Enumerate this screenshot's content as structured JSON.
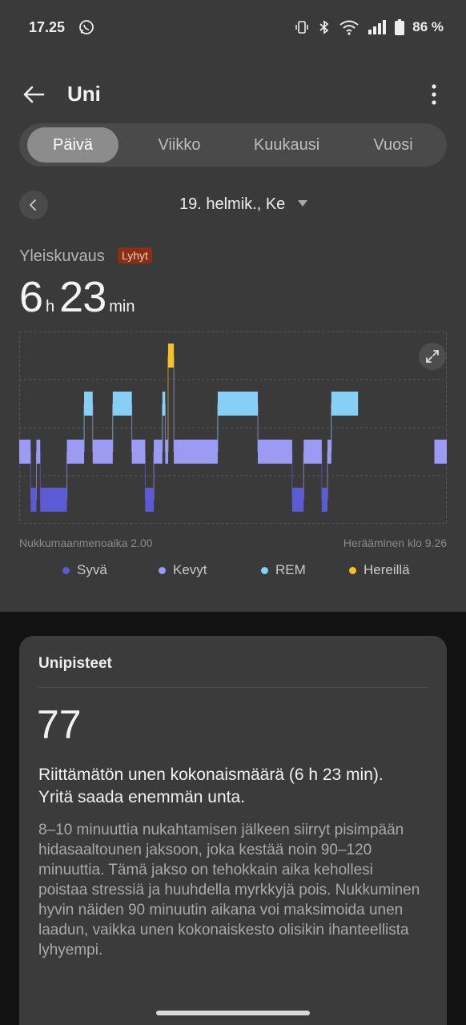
{
  "status": {
    "time": "17.25",
    "battery": "86 %"
  },
  "appbar": {
    "title": "Uni"
  },
  "tabs": [
    {
      "label": "Päivä",
      "active": true
    },
    {
      "label": "Viikko",
      "active": false
    },
    {
      "label": "Kuukausi",
      "active": false
    },
    {
      "label": "Vuosi",
      "active": false
    }
  ],
  "date": {
    "label": "19. helmik., Ke"
  },
  "overview": {
    "label": "Yleiskuvaus",
    "badge": "Lyhyt",
    "hours": "6",
    "hours_unit": "h",
    "minutes": "23",
    "minutes_unit": "min"
  },
  "chart": {
    "bedtime_label": "Nukkumaanmenoaika 2.00",
    "wake_label": "Herääminen klo 9.26",
    "colors": {
      "deep": "#5b5bd6",
      "light": "#9b9bf4",
      "rem": "#86d0f6",
      "awake": "#f6c026"
    },
    "stages": [
      "awake",
      "rem",
      "light",
      "deep"
    ]
  },
  "chart_data": {
    "type": "bar",
    "categories": [
      "Syvä",
      "Kevyt",
      "REM",
      "Hereillä"
    ],
    "start_time": "2.00",
    "end_time": "9.26",
    "segments": [
      {
        "stage": "light",
        "start": 0.0,
        "end": 0.12
      },
      {
        "stage": "deep",
        "start": 0.12,
        "end": 0.18
      },
      {
        "stage": "light",
        "start": 0.18,
        "end": 0.22
      },
      {
        "stage": "deep",
        "start": 0.22,
        "end": 0.5
      },
      {
        "stage": "light",
        "start": 0.5,
        "end": 0.68
      },
      {
        "stage": "rem",
        "start": 0.68,
        "end": 0.77
      },
      {
        "stage": "light",
        "start": 0.77,
        "end": 0.98
      },
      {
        "stage": "rem",
        "start": 0.98,
        "end": 1.18
      },
      {
        "stage": "light",
        "start": 1.18,
        "end": 1.32
      },
      {
        "stage": "deep",
        "start": 1.32,
        "end": 1.41
      },
      {
        "stage": "light",
        "start": 1.41,
        "end": 1.5
      },
      {
        "stage": "rem",
        "start": 1.5,
        "end": 1.53
      },
      {
        "stage": "light",
        "start": 1.53,
        "end": 1.56
      },
      {
        "stage": "awake",
        "start": 1.56,
        "end": 1.62
      },
      {
        "stage": "light",
        "start": 1.62,
        "end": 2.08
      },
      {
        "stage": "rem",
        "start": 2.08,
        "end": 2.5
      },
      {
        "stage": "light",
        "start": 2.5,
        "end": 2.86
      },
      {
        "stage": "deep",
        "start": 2.86,
        "end": 2.98
      },
      {
        "stage": "light",
        "start": 2.98,
        "end": 3.17
      },
      {
        "stage": "deep",
        "start": 3.17,
        "end": 3.23
      },
      {
        "stage": "light",
        "start": 3.23,
        "end": 3.27
      },
      {
        "stage": "rem",
        "start": 3.27,
        "end": 3.55
      },
      {
        "stage": "light",
        "start": 4.35,
        "end": 4.48
      }
    ]
  },
  "legend": [
    {
      "label": "Syvä",
      "color": "#5b5bd6"
    },
    {
      "label": "Kevyt",
      "color": "#9b9bf4"
    },
    {
      "label": "REM",
      "color": "#86d0f6"
    },
    {
      "label": "Hereillä",
      "color": "#f6c026"
    }
  ],
  "card": {
    "title": "Unipisteet",
    "score": "77",
    "headline": "Riittämätön unen kokonaismäärä (6 h 23 min). Yritä saada enemmän unta.",
    "body": "8–10 minuuttia nukahtamisen jälkeen siirryt pisimpään hidasaaltounen jaksoon, joka kestää noin 90–120 minuuttia. Tämä jakso on tehokkain aika kehollesi poistaa stressiä ja huuhdella myrkkyjä pois. Nukkuminen hyvin näiden 90 minuutin aikana voi maksimoida unen laadun, vaikka unen kokonaiskesto olisikin ihanteellista lyhyempi."
  }
}
